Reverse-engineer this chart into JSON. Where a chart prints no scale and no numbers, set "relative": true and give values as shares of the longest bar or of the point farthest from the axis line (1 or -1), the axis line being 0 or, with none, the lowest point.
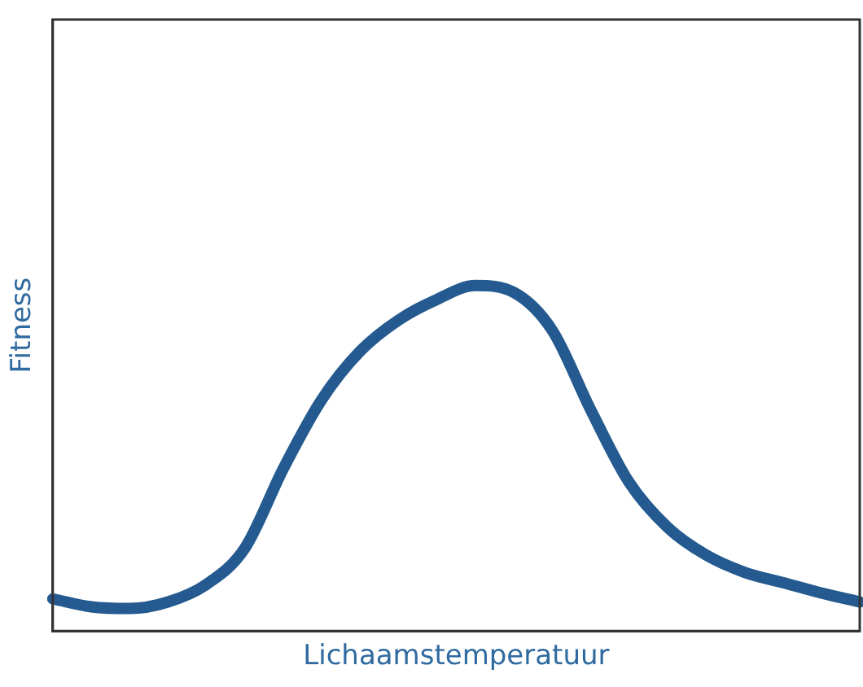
{
  "chart_data": {
    "type": "line",
    "relative": true,
    "xlabel": "Lichaamstemperatuur",
    "ylabel": "Fitness",
    "grid": false,
    "legend": false,
    "marker": "none",
    "line_style": "solid",
    "categories": [
      null,
      null,
      null,
      null,
      null,
      null,
      null,
      null,
      null,
      null,
      null,
      null,
      null,
      null,
      null,
      null,
      null,
      null,
      null,
      null,
      null,
      null
    ],
    "series": [
      {
        "color": "#245a8f",
        "values": [
          0.093,
          0.07,
          0.065,
          0.084,
          0.135,
          0.24,
          0.47,
          0.67,
          0.81,
          0.9,
          0.96,
          1.0,
          0.98,
          0.87,
          0.64,
          0.43,
          0.3,
          0.22,
          0.17,
          0.14,
          0.11,
          0.084
        ]
      }
    ]
  }
}
